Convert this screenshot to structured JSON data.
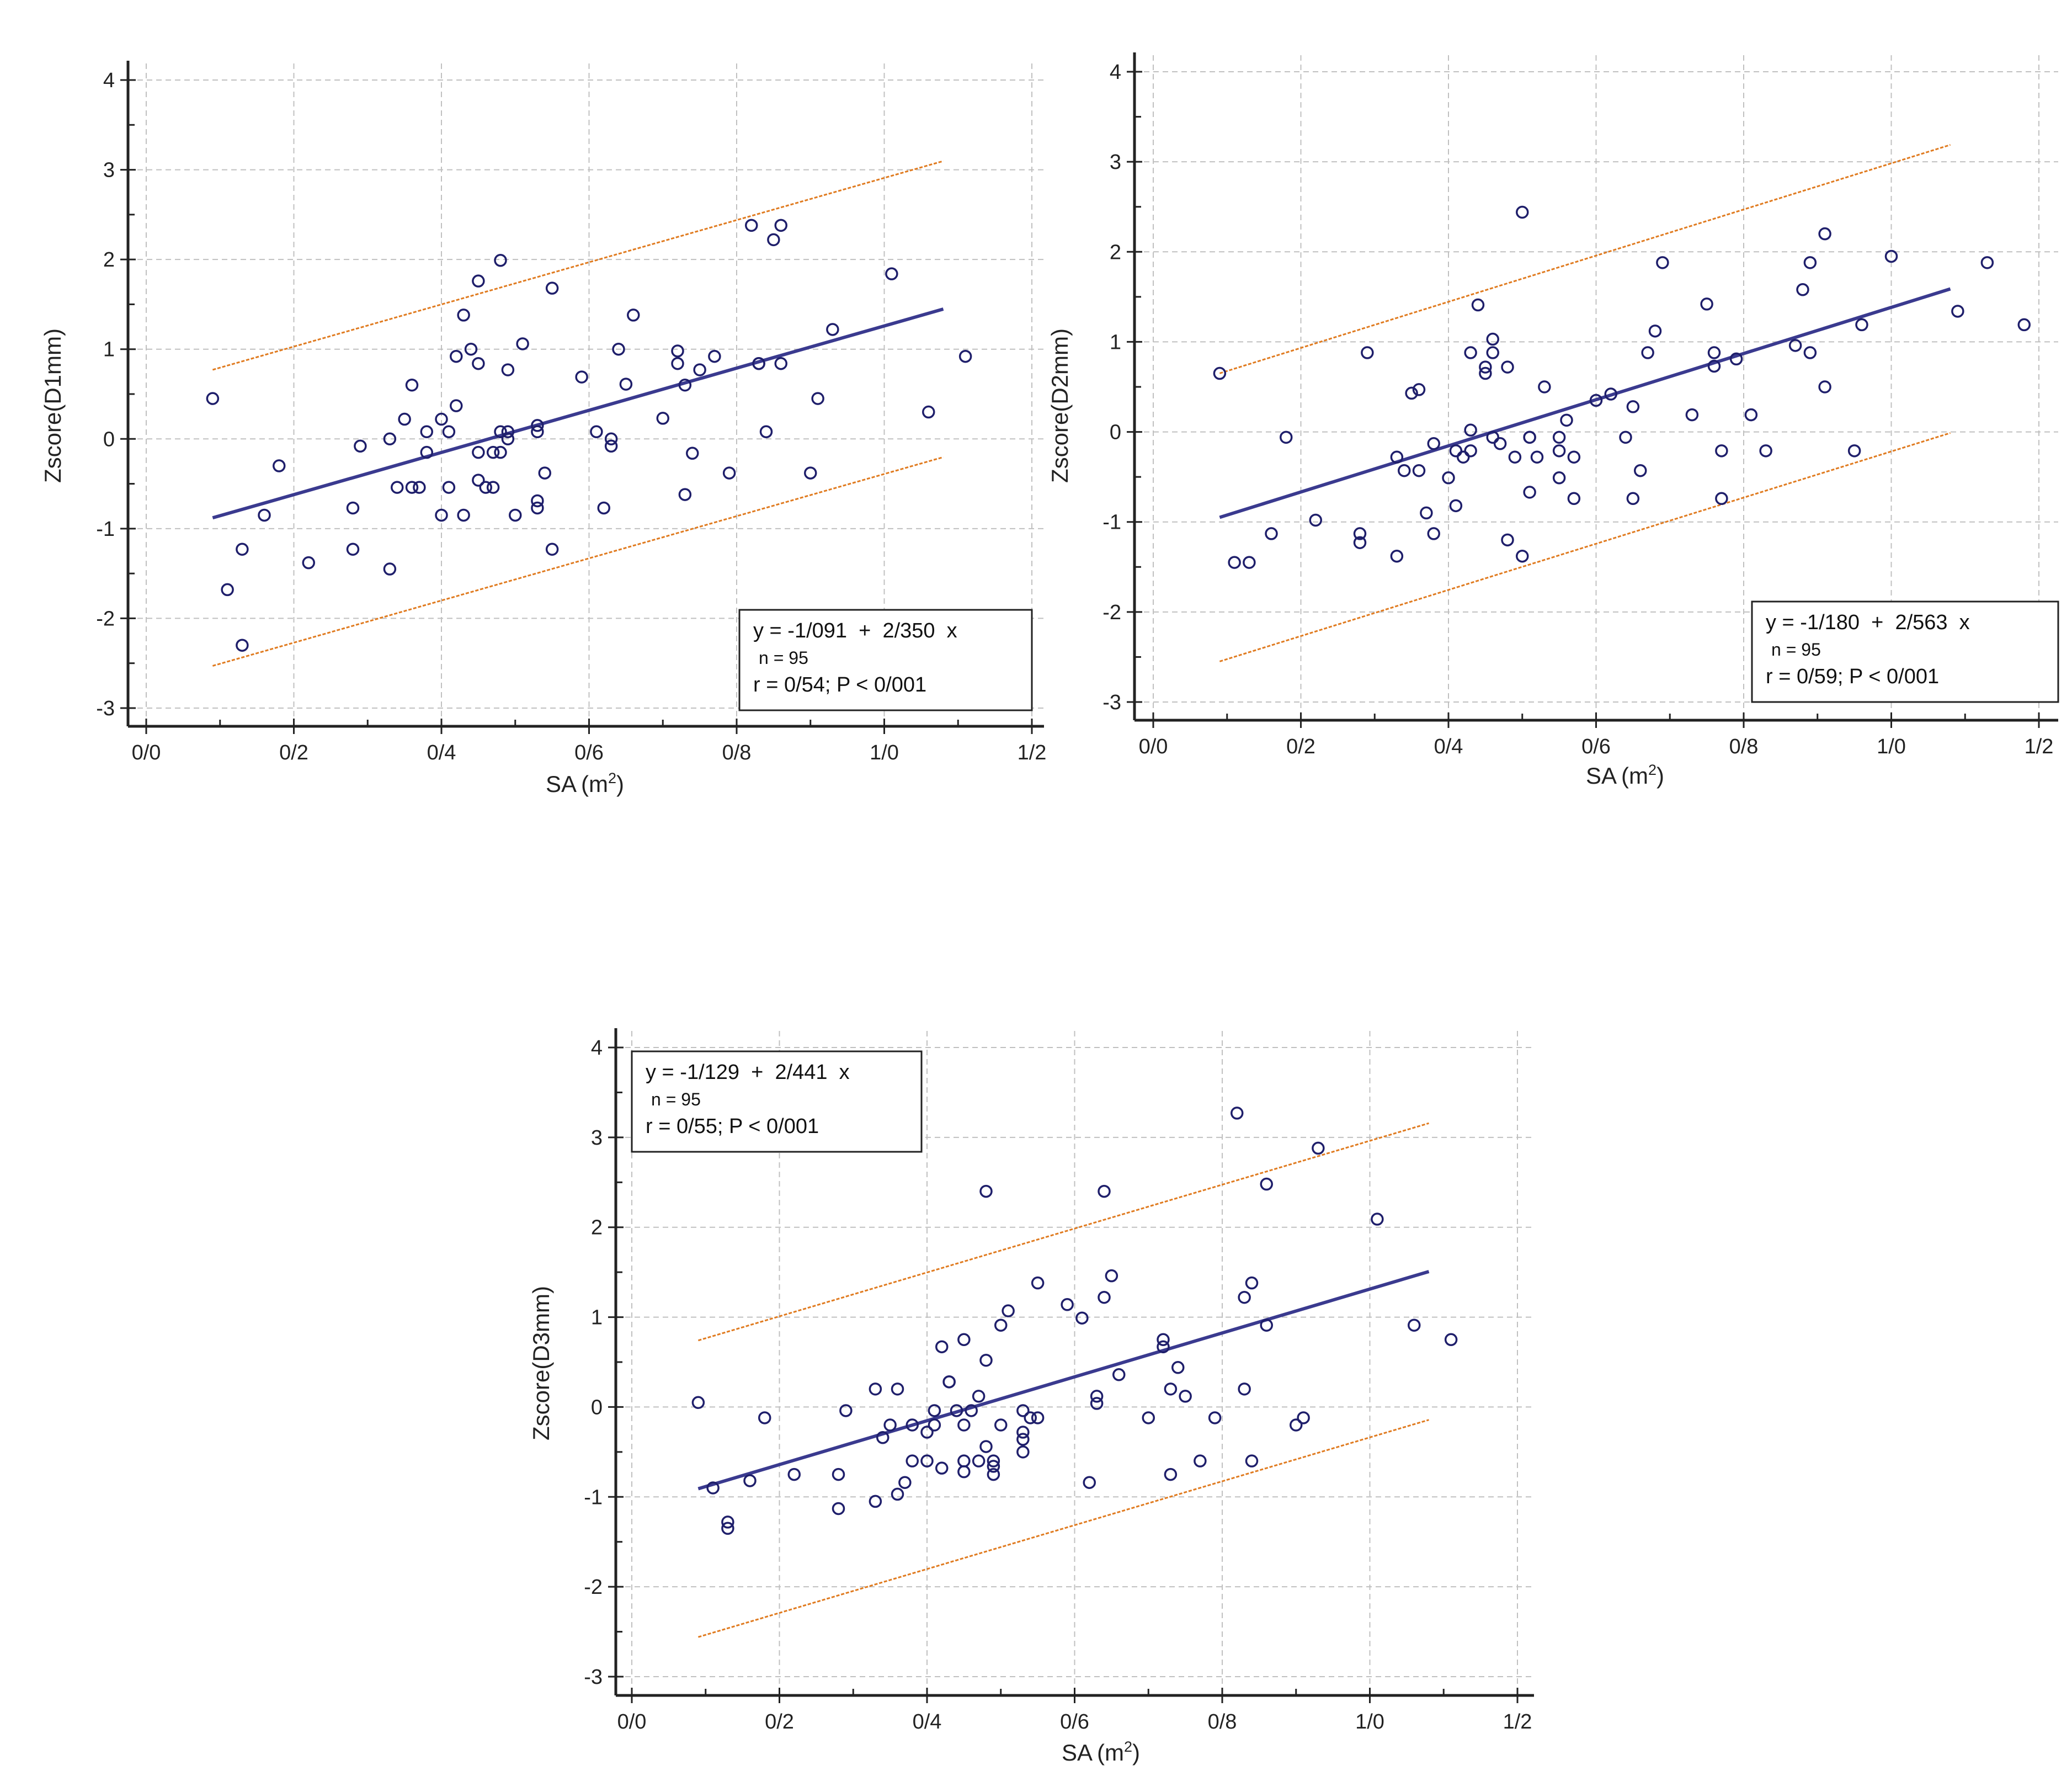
{
  "colors": {
    "points": "#1f1f6b",
    "fit": "#3a3a8f",
    "band": "#e07b20",
    "grid": "#c0c0c0",
    "axis": "#222222"
  },
  "chart_data": [
    {
      "type": "scatter",
      "xlabel": "SA",
      "xunit_base": "m",
      "xunit_exp": "2",
      "ylabel": "Zscore(D1mm)",
      "xlim": [
        0.0,
        1.2
      ],
      "ylim": [
        -3,
        4
      ],
      "x_ticks": [
        "0/0",
        "0/2",
        "0/4",
        "0/6",
        "0/8",
        "1/0",
        "1/2"
      ],
      "y_ticks": [
        "-3",
        "-2",
        "-1",
        "0",
        "1",
        "2",
        "3",
        "4"
      ],
      "grid": true,
      "legend_placement": "bottom-right",
      "equation": "y = -1/091  +  2/350  x",
      "n_text": "n = 95",
      "r_text": "r = 0/54; P < 0/001",
      "fit": {
        "intercept": -1.091,
        "slope": 2.35,
        "x_range": [
          0.09,
          1.08
        ]
      },
      "band": {
        "upper_offset": 1.65,
        "lower_offset": -1.65
      },
      "points": [
        [
          0.09,
          0.45
        ],
        [
          0.11,
          -1.68
        ],
        [
          0.13,
          -1.23
        ],
        [
          0.13,
          -2.3
        ],
        [
          0.16,
          -0.85
        ],
        [
          0.18,
          -0.3
        ],
        [
          0.22,
          -1.38
        ],
        [
          0.28,
          -1.23
        ],
        [
          0.28,
          -0.77
        ],
        [
          0.29,
          -0.08
        ],
        [
          0.33,
          -1.45
        ],
        [
          0.33,
          0.0
        ],
        [
          0.34,
          -0.54
        ],
        [
          0.35,
          0.22
        ],
        [
          0.36,
          0.6
        ],
        [
          0.36,
          -0.54
        ],
        [
          0.37,
          -0.54
        ],
        [
          0.38,
          0.08
        ],
        [
          0.38,
          -0.15
        ],
        [
          0.4,
          -0.85
        ],
        [
          0.4,
          0.22
        ],
        [
          0.41,
          0.08
        ],
        [
          0.41,
          -0.54
        ],
        [
          0.42,
          0.92
        ],
        [
          0.42,
          0.37
        ],
        [
          0.43,
          -0.85
        ],
        [
          0.43,
          1.38
        ],
        [
          0.44,
          1.0
        ],
        [
          0.45,
          1.76
        ],
        [
          0.45,
          0.84
        ],
        [
          0.45,
          -0.46
        ],
        [
          0.45,
          -0.15
        ],
        [
          0.46,
          -0.54
        ],
        [
          0.47,
          -0.15
        ],
        [
          0.47,
          -0.54
        ],
        [
          0.48,
          0.08
        ],
        [
          0.48,
          1.99
        ],
        [
          0.48,
          -0.15
        ],
        [
          0.49,
          0.0
        ],
        [
          0.49,
          0.77
        ],
        [
          0.49,
          0.08
        ],
        [
          0.5,
          -0.85
        ],
        [
          0.51,
          1.06
        ],
        [
          0.53,
          -0.77
        ],
        [
          0.53,
          -0.69
        ],
        [
          0.53,
          0.15
        ],
        [
          0.53,
          0.08
        ],
        [
          0.54,
          -0.38
        ],
        [
          0.55,
          -1.23
        ],
        [
          0.55,
          1.68
        ],
        [
          0.59,
          0.69
        ],
        [
          0.61,
          0.08
        ],
        [
          0.62,
          -0.77
        ],
        [
          0.63,
          -0.08
        ],
        [
          0.63,
          0.0
        ],
        [
          0.64,
          1.0
        ],
        [
          0.65,
          0.61
        ],
        [
          0.66,
          1.38
        ],
        [
          0.7,
          0.23
        ],
        [
          0.72,
          0.98
        ],
        [
          0.72,
          0.84
        ],
        [
          0.73,
          -0.62
        ],
        [
          0.73,
          0.6
        ],
        [
          0.74,
          -0.16
        ],
        [
          0.75,
          0.77
        ],
        [
          0.77,
          0.92
        ],
        [
          0.79,
          -0.38
        ],
        [
          0.82,
          2.38
        ],
        [
          0.83,
          0.84
        ],
        [
          0.83,
          0.84
        ],
        [
          0.84,
          0.08
        ],
        [
          0.85,
          2.22
        ],
        [
          0.86,
          0.84
        ],
        [
          0.86,
          2.38
        ],
        [
          0.9,
          -0.38
        ],
        [
          0.91,
          0.45
        ],
        [
          0.93,
          1.22
        ],
        [
          1.01,
          1.84
        ],
        [
          1.06,
          0.3
        ],
        [
          1.11,
          0.92
        ]
      ]
    },
    {
      "type": "scatter",
      "xlabel": "SA",
      "xunit_base": "m",
      "xunit_exp": "2",
      "ylabel": "Zscore(D2mm)",
      "xlim": [
        0.0,
        1.2
      ],
      "ylim": [
        -3,
        4
      ],
      "x_ticks": [
        "0/0",
        "0/2",
        "0/4",
        "0/6",
        "0/8",
        "1/0",
        "1/2"
      ],
      "y_ticks": [
        "-3",
        "-2",
        "-1",
        "0",
        "1",
        "2",
        "3",
        "4"
      ],
      "grid": true,
      "legend_placement": "bottom-right",
      "equation": "y = -1/180  +  2/563  x",
      "n_text": "n = 95",
      "r_text": "r = 0/59; P < 0/001",
      "fit": {
        "intercept": -1.18,
        "slope": 2.563,
        "x_range": [
          0.09,
          1.08
        ]
      },
      "band": {
        "upper_offset": 1.6,
        "lower_offset": -1.6
      },
      "points": [
        [
          0.09,
          0.65
        ],
        [
          0.11,
          -1.45
        ],
        [
          0.13,
          -1.45
        ],
        [
          0.16,
          -1.13
        ],
        [
          0.18,
          -0.06
        ],
        [
          0.22,
          -0.98
        ],
        [
          0.28,
          -1.13
        ],
        [
          0.28,
          -1.23
        ],
        [
          0.29,
          0.88
        ],
        [
          0.33,
          -0.28
        ],
        [
          0.33,
          -1.38
        ],
        [
          0.34,
          -0.43
        ],
        [
          0.35,
          0.43
        ],
        [
          0.36,
          -0.43
        ],
        [
          0.36,
          0.47
        ],
        [
          0.37,
          -0.9
        ],
        [
          0.38,
          -1.13
        ],
        [
          0.38,
          -0.13
        ],
        [
          0.4,
          -0.51
        ],
        [
          0.41,
          -0.82
        ],
        [
          0.41,
          -0.21
        ],
        [
          0.42,
          -0.28
        ],
        [
          0.43,
          0.02
        ],
        [
          0.43,
          0.88
        ],
        [
          0.43,
          -0.21
        ],
        [
          0.44,
          1.41
        ],
        [
          0.45,
          0.65
        ],
        [
          0.45,
          0.72
        ],
        [
          0.46,
          0.88
        ],
        [
          0.46,
          1.03
        ],
        [
          0.46,
          -0.06
        ],
        [
          0.47,
          -0.13
        ],
        [
          0.48,
          -1.2
        ],
        [
          0.48,
          0.72
        ],
        [
          0.49,
          -0.28
        ],
        [
          0.5,
          -1.38
        ],
        [
          0.5,
          2.44
        ],
        [
          0.51,
          -0.06
        ],
        [
          0.51,
          -0.06
        ],
        [
          0.51,
          -0.67
        ],
        [
          0.52,
          -0.28
        ],
        [
          0.53,
          0.5
        ],
        [
          0.55,
          -0.06
        ],
        [
          0.55,
          -0.21
        ],
        [
          0.55,
          -0.51
        ],
        [
          0.56,
          0.13
        ],
        [
          0.57,
          -0.28
        ],
        [
          0.57,
          -0.74
        ],
        [
          0.6,
          0.35
        ],
        [
          0.62,
          0.42
        ],
        [
          0.64,
          -0.06
        ],
        [
          0.65,
          0.28
        ],
        [
          0.65,
          -0.74
        ],
        [
          0.66,
          -0.43
        ],
        [
          0.67,
          0.88
        ],
        [
          0.68,
          1.12
        ],
        [
          0.69,
          1.88
        ],
        [
          0.73,
          0.19
        ],
        [
          0.75,
          1.42
        ],
        [
          0.76,
          0.88
        ],
        [
          0.76,
          0.73
        ],
        [
          0.77,
          -0.21
        ],
        [
          0.77,
          -0.74
        ],
        [
          0.79,
          0.81
        ],
        [
          0.81,
          0.19
        ],
        [
          0.83,
          -0.21
        ],
        [
          0.87,
          0.96
        ],
        [
          0.88,
          1.58
        ],
        [
          0.89,
          0.88
        ],
        [
          0.89,
          1.88
        ],
        [
          0.91,
          2.2
        ],
        [
          0.91,
          0.5
        ],
        [
          0.95,
          -0.21
        ],
        [
          0.96,
          1.19
        ],
        [
          1.0,
          1.95
        ],
        [
          1.09,
          1.34
        ],
        [
          1.13,
          1.88
        ],
        [
          1.18,
          1.19
        ]
      ]
    },
    {
      "type": "scatter",
      "xlabel": "SA",
      "xunit_base": "m",
      "xunit_exp": "2",
      "ylabel": "Zscore(D3mm)",
      "xlim": [
        0.0,
        1.2
      ],
      "ylim": [
        -3,
        4
      ],
      "x_ticks": [
        "0/0",
        "0/2",
        "0/4",
        "0/6",
        "0/8",
        "1/0",
        "1/2"
      ],
      "y_ticks": [
        "-3",
        "-2",
        "-1",
        "0",
        "1",
        "2",
        "3",
        "4"
      ],
      "grid": true,
      "legend_placement": "top-left",
      "equation": "y = -1/129  +  2/441  x",
      "n_text": "n = 95",
      "r_text": "r = 0/55; P < 0/001",
      "fit": {
        "intercept": -1.129,
        "slope": 2.441,
        "x_range": [
          0.09,
          1.08
        ]
      },
      "band": {
        "upper_offset": 1.65,
        "lower_offset": -1.65
      },
      "points": [
        [
          0.09,
          0.05
        ],
        [
          0.11,
          -0.9
        ],
        [
          0.13,
          -1.28
        ],
        [
          0.13,
          -1.35
        ],
        [
          0.16,
          -0.82
        ],
        [
          0.18,
          -0.12
        ],
        [
          0.22,
          -0.75
        ],
        [
          0.28,
          -1.13
        ],
        [
          0.28,
          -0.75
        ],
        [
          0.29,
          -0.04
        ],
        [
          0.33,
          -1.05
        ],
        [
          0.33,
          0.2
        ],
        [
          0.34,
          -0.34
        ],
        [
          0.35,
          -0.2
        ],
        [
          0.36,
          -0.97
        ],
        [
          0.36,
          0.2
        ],
        [
          0.37,
          -0.84
        ],
        [
          0.38,
          -0.2
        ],
        [
          0.38,
          -0.6
        ],
        [
          0.4,
          -0.6
        ],
        [
          0.4,
          -0.28
        ],
        [
          0.41,
          -0.2
        ],
        [
          0.41,
          -0.04
        ],
        [
          0.42,
          0.67
        ],
        [
          0.42,
          -0.68
        ],
        [
          0.43,
          0.28
        ],
        [
          0.43,
          0.28
        ],
        [
          0.44,
          -0.04
        ],
        [
          0.45,
          0.75
        ],
        [
          0.45,
          -0.6
        ],
        [
          0.45,
          -0.2
        ],
        [
          0.45,
          -0.72
        ],
        [
          0.46,
          -0.04
        ],
        [
          0.47,
          0.12
        ],
        [
          0.47,
          -0.6
        ],
        [
          0.48,
          -0.44
        ],
        [
          0.48,
          2.4
        ],
        [
          0.48,
          0.52
        ],
        [
          0.49,
          -0.66
        ],
        [
          0.49,
          -0.6
        ],
        [
          0.49,
          -0.75
        ],
        [
          0.5,
          0.91
        ],
        [
          0.5,
          -0.2
        ],
        [
          0.51,
          1.07
        ],
        [
          0.53,
          -0.28
        ],
        [
          0.53,
          -0.36
        ],
        [
          0.53,
          -0.04
        ],
        [
          0.53,
          -0.5
        ],
        [
          0.54,
          -0.12
        ],
        [
          0.55,
          -0.12
        ],
        [
          0.55,
          1.38
        ],
        [
          0.59,
          1.14
        ],
        [
          0.61,
          0.99
        ],
        [
          0.62,
          -0.84
        ],
        [
          0.63,
          0.12
        ],
        [
          0.63,
          0.04
        ],
        [
          0.64,
          1.22
        ],
        [
          0.64,
          2.4
        ],
        [
          0.65,
          1.46
        ],
        [
          0.66,
          0.36
        ],
        [
          0.7,
          -0.12
        ],
        [
          0.72,
          0.67
        ],
        [
          0.72,
          0.75
        ],
        [
          0.73,
          0.2
        ],
        [
          0.73,
          -0.75
        ],
        [
          0.74,
          0.44
        ],
        [
          0.75,
          0.12
        ],
        [
          0.77,
          -0.6
        ],
        [
          0.79,
          -0.12
        ],
        [
          0.82,
          3.27
        ],
        [
          0.83,
          0.2
        ],
        [
          0.83,
          1.22
        ],
        [
          0.84,
          -0.6
        ],
        [
          0.84,
          1.38
        ],
        [
          0.86,
          0.91
        ],
        [
          0.86,
          2.48
        ],
        [
          0.9,
          -0.2
        ],
        [
          0.91,
          -0.12
        ],
        [
          0.93,
          2.88
        ],
        [
          1.01,
          2.09
        ],
        [
          1.06,
          0.91
        ],
        [
          1.11,
          0.75
        ]
      ]
    }
  ]
}
